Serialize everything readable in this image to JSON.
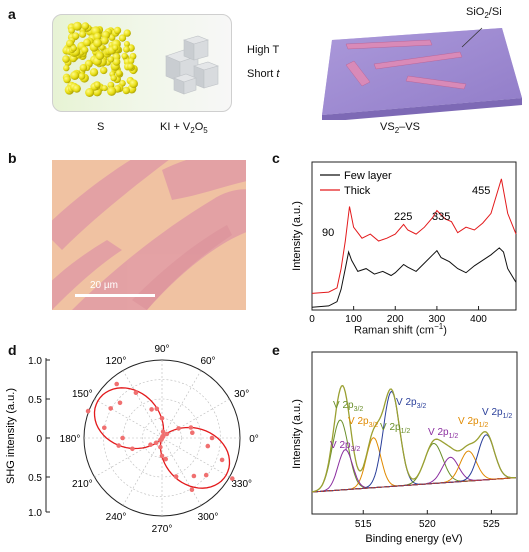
{
  "panel_labels": {
    "a": "a",
    "b": "b",
    "c": "c",
    "d": "d",
    "e": "e"
  },
  "panel_a": {
    "label_s": "S",
    "label_ki": "KI + V",
    "label_ki_sub": "2",
    "label_ki_o": "O",
    "label_ki_o_sub": "5",
    "condition_temp": "High T",
    "condition_time": "Short ",
    "condition_time_t": "t",
    "substrate_si": "SiO",
    "substrate_sub": "2",
    "substrate_rest": "/Si",
    "product_vs": "VS",
    "product_sub": "2",
    "product_rest": "–VS"
  },
  "panel_b": {
    "scale_bar": "20 µm"
  },
  "panel_c": {
    "legend": [
      "Few layer",
      "Thick"
    ],
    "ylabel": "Intensity (a.u.)",
    "xlabel": "Raman shift (cm",
    "xlabel_sup": "−1",
    "xlabel_end": ")",
    "xticks": [
      "0",
      "100",
      "200",
      "300",
      "400"
    ],
    "peaks": [
      "90",
      "225",
      "335",
      "455"
    ],
    "colors": {
      "few_layer": "#111111",
      "thick": "#e31a1c"
    }
  },
  "panel_d": {
    "ylabel": "SHG intensity (a.u.)",
    "angles": [
      "90°",
      "60°",
      "30°",
      "0°",
      "330°",
      "300°",
      "270°",
      "240°",
      "210°",
      "180°",
      "150°",
      "120°"
    ],
    "radial_ticks": [
      "1.0",
      "0.5",
      "0",
      "0.5",
      "1.0"
    ]
  },
  "panel_e": {
    "ylabel": "Intensity (a.u.)",
    "xlabel": "Binding energy (eV)",
    "xticks": [
      "515",
      "520",
      "525"
    ],
    "annotations": [
      {
        "t": "V 2p",
        "s": "3/2",
        "c": "#6a8f2a"
      },
      {
        "t": "V 2p",
        "s": "3/2",
        "c": "#e08a00"
      },
      {
        "t": "V 2p",
        "s": "3/2",
        "c": "#8b2ea0"
      },
      {
        "t": "V 2p",
        "s": "3/2",
        "c": "#2a3f9a"
      },
      {
        "t": "V 2p",
        "s": "1/2",
        "c": "#6a8f2a"
      },
      {
        "t": "V 2p",
        "s": "1/2",
        "c": "#8b2ea0"
      },
      {
        "t": "V 2p",
        "s": "1/2",
        "c": "#e08a00"
      },
      {
        "t": "V  2p",
        "s": "1/2",
        "c": "#2a3f9a"
      }
    ]
  },
  "chart_data": [
    {
      "type": "line",
      "xlabel": "Raman shift (cm−1)",
      "ylabel": "Intensity (a.u.)",
      "xlim": [
        0,
        490
      ],
      "series": [
        {
          "name": "Few layer",
          "x": [
            0,
            40,
            60,
            70,
            80,
            88,
            95,
            110,
            130,
            150,
            170,
            190,
            200,
            220,
            230,
            250,
            270,
            290,
            300,
            310,
            330,
            350,
            370,
            390,
            410,
            430,
            450,
            460,
            470,
            490
          ],
          "y": [
            0.02,
            0.03,
            0.06,
            0.15,
            0.3,
            0.42,
            0.36,
            0.28,
            0.3,
            0.26,
            0.28,
            0.25,
            0.27,
            0.33,
            0.31,
            0.28,
            0.34,
            0.4,
            0.43,
            0.38,
            0.35,
            0.3,
            0.27,
            0.32,
            0.36,
            0.4,
            0.45,
            0.42,
            0.3,
            0.2
          ]
        },
        {
          "name": "Thick",
          "x": [
            0,
            40,
            60,
            70,
            80,
            90,
            100,
            120,
            140,
            160,
            180,
            200,
            220,
            230,
            250,
            270,
            290,
            300,
            320,
            335,
            350,
            370,
            390,
            410,
            430,
            455,
            470,
            490
          ],
          "y": [
            0.12,
            0.13,
            0.16,
            0.3,
            0.5,
            0.75,
            0.6,
            0.52,
            0.55,
            0.5,
            0.52,
            0.55,
            0.62,
            0.58,
            0.55,
            0.6,
            0.67,
            0.72,
            0.66,
            0.64,
            0.56,
            0.6,
            0.58,
            0.63,
            0.7,
            0.95,
            0.7,
            0.55
          ]
        }
      ],
      "peak_labels": [
        90,
        225,
        335,
        455
      ]
    },
    {
      "type": "scatter",
      "projection": "polar",
      "rlim": [
        0,
        1.0
      ],
      "note": "SHG polar plot, two-lobed pattern along 150°/330°"
    },
    {
      "type": "line",
      "xlabel": "Binding energy (eV)",
      "ylabel": "Intensity (a.u.)",
      "xlim": [
        511,
        527
      ],
      "xticks": [
        515,
        520,
        525
      ]
    }
  ]
}
